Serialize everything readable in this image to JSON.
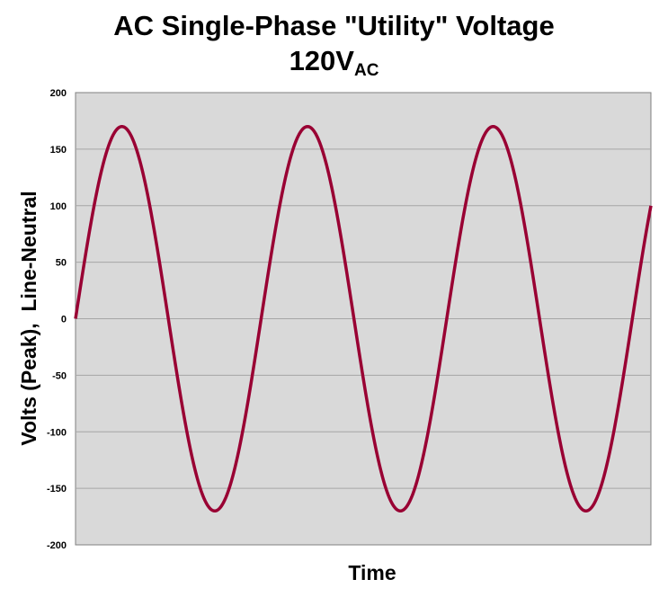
{
  "title": {
    "line1": "AC Single-Phase \"Utility\" Voltage",
    "line2_main": "120V",
    "line2_sub": "AC"
  },
  "colors": {
    "plot_background": "#d9d9d9",
    "curve": "#990033",
    "gridline": "#a6a6a6"
  },
  "chart_data": {
    "type": "line",
    "title": "AC Single-Phase \"Utility\" Voltage 120VAC",
    "xlabel": "Time",
    "ylabel": "Volts (Peak),  Line-Neutral",
    "ylim": [
      -200,
      200
    ],
    "yticks": [
      200,
      150,
      100,
      50,
      0,
      -50,
      -100,
      -150,
      -200
    ],
    "ytick_labels": [
      "200",
      "150",
      "100",
      "50",
      "0",
      "-50",
      "-100",
      "-150",
      "-200"
    ],
    "grid": true,
    "legend": "none",
    "series": [
      {
        "function": "sine",
        "amplitude": 170,
        "cycles": 3.1,
        "start_phase_deg": 0
      }
    ]
  }
}
